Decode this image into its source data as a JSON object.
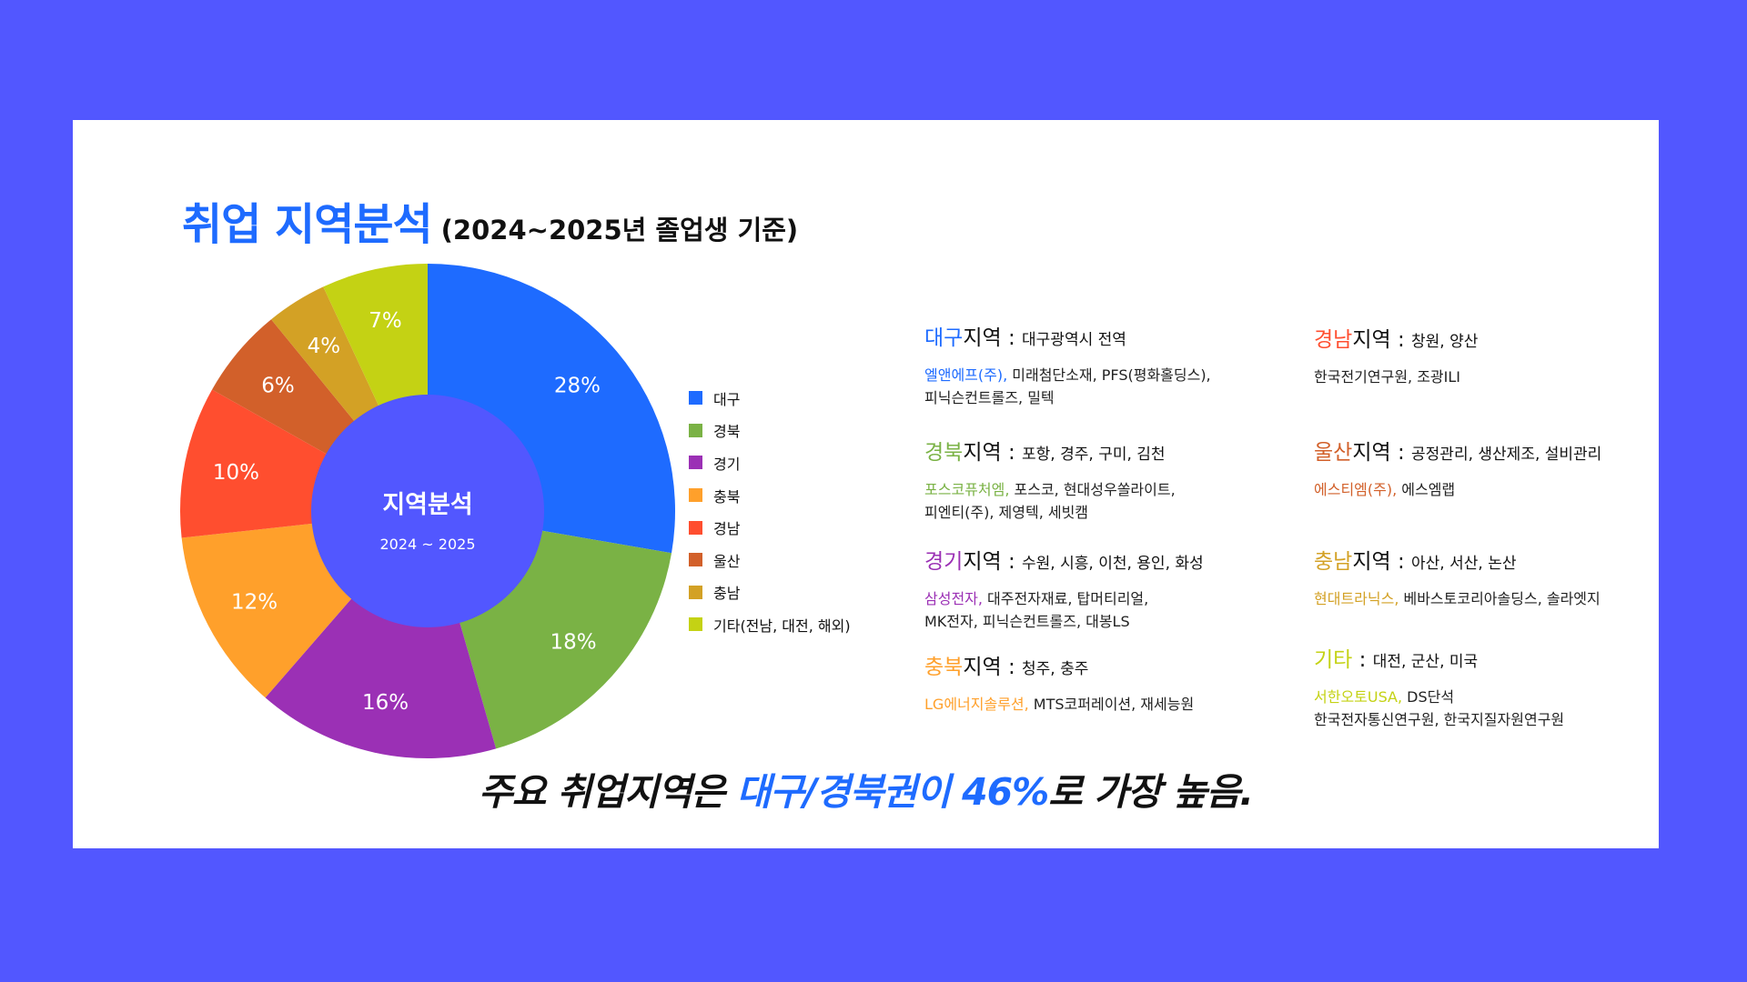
{
  "title": {
    "main": "취업 지역분석",
    "sub": "(2024~2025년 졸업생 기준)"
  },
  "center": {
    "label": "지역분석",
    "period": "2024 ~ 2025"
  },
  "chart_data": {
    "type": "pie",
    "categories": [
      "대구",
      "경북",
      "경기",
      "충북",
      "경남",
      "울산",
      "충남",
      "기타(전남, 대전, 해외)"
    ],
    "values": [
      28,
      18,
      16,
      12,
      10,
      6,
      4,
      7
    ],
    "value_labels": [
      "28%",
      "18%",
      "16%",
      "12%",
      "10%",
      "6%",
      "4%",
      "7%"
    ],
    "colors": [
      "#1e6bff",
      "#7ab245",
      "#9b30b5",
      "#ffa02b",
      "#ff4e2f",
      "#d2602a",
      "#d3a125",
      "#c4d214"
    ],
    "legend_position": "right",
    "donut_hole_color": "#5257ff"
  },
  "regions": [
    {
      "name": "대구",
      "suffix": "지역",
      "color": "#1e6bff",
      "areas": "대구광역시 전역",
      "highlight": "엘앤에프(주),",
      "companies": " 미래첨단소재, PFS(평화홀딩스),",
      "companies2": "피닉슨컨트롤즈, 밀텍"
    },
    {
      "name": "경북",
      "suffix": "지역",
      "color": "#7ab245",
      "areas": "포항, 경주, 구미, 김천",
      "highlight": "포스코퓨처엠,",
      "companies": " 포스코, 현대성우쏠라이트,",
      "companies2": "피엔티(주), 제영텍, 세빗캠"
    },
    {
      "name": "경기",
      "suffix": "지역",
      "color": "#9b30b5",
      "areas": "수원, 시흥, 이천, 용인, 화성",
      "highlight": "삼성전자,",
      "companies": " 대주전자재료, 탑머티리얼,",
      "companies2": "MK전자, 피닉슨컨트롤즈, 대봉LS"
    },
    {
      "name": "충북",
      "suffix": "지역",
      "color": "#ffa02b",
      "areas": "청주, 충주",
      "highlight": "LG에너지솔루션,",
      "companies": " MTS코퍼레이션, 재세능원",
      "companies2": ""
    },
    {
      "name": "경남",
      "suffix": "지역",
      "color": "#ff4e2f",
      "areas": "창원, 양산",
      "highlight": "",
      "companies": "한국전기연구원, 조광ILI",
      "companies2": ""
    },
    {
      "name": "울산",
      "suffix": "지역",
      "color": "#d2602a",
      "areas": "공정관리, 생산제조, 설비관리",
      "highlight": "에스티엠(주),",
      "companies": " 에스엠랩",
      "companies2": ""
    },
    {
      "name": "충남",
      "suffix": "지역",
      "color": "#d3a125",
      "areas": "아산, 서산, 논산",
      "highlight": "현대트라닉스,",
      "companies": " 베바스토코리아솔딩스, 솔라엣지",
      "companies2": ""
    },
    {
      "name": "기타",
      "suffix": "",
      "color": "#c4d214",
      "areas": "대전, 군산, 미국",
      "highlight": "서한오토USA,",
      "companies": " DS단석",
      "companies2": "한국전자통신연구원, 한국지질자원연구원"
    }
  ],
  "conclusion": {
    "pre": "주요 취업지역은 ",
    "highlight": "대구/경북권이 46%",
    "post": "로 가장 높음."
  }
}
